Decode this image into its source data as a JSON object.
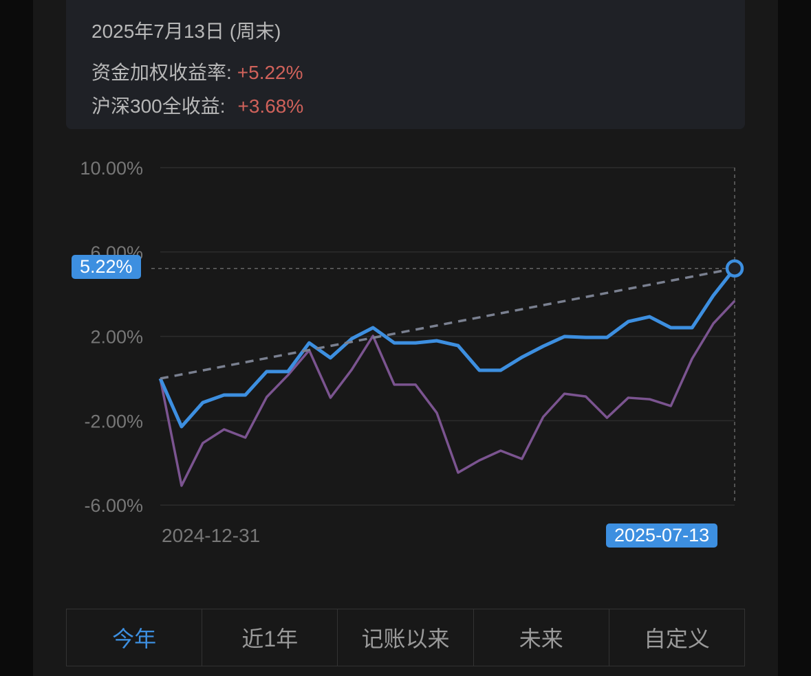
{
  "summary": {
    "date": "2025年7月13日 (周末)",
    "rows": [
      {
        "label": "资金加权收益率:",
        "value": "+5.22%"
      },
      {
        "label": "沪深300全收益:",
        "value": "+3.68%"
      }
    ]
  },
  "chart_data": {
    "type": "line",
    "y_ticks": [
      "10.00%",
      "6.00%",
      "2.00%",
      "-2.00%",
      "-6.00%"
    ],
    "y_tick_values": [
      10,
      6,
      2,
      -2,
      -6
    ],
    "ylim": [
      -6,
      10
    ],
    "x_start_label": "2024-12-31",
    "x_end_label": "2025-07-13",
    "selected_value_label": "5.22%",
    "grid": true,
    "colors": {
      "portfolio": "#3d8fe0",
      "benchmark": "#7b5490",
      "trend": "#7a8090"
    },
    "series": [
      {
        "key": "portfolio",
        "values": [
          0,
          -2.28,
          -1.14,
          -0.78,
          -0.78,
          0.33,
          0.33,
          1.69,
          0.98,
          1.89,
          2.41,
          1.69,
          1.69,
          1.79,
          1.56,
          0.39,
          0.39,
          1.01,
          1.53,
          1.99,
          1.95,
          1.95,
          2.7,
          2.93,
          2.41,
          2.41,
          3.94,
          5.22
        ]
      },
      {
        "key": "benchmark",
        "values": [
          0,
          -5.08,
          -3.06,
          -2.41,
          -2.8,
          -0.88,
          0.16,
          1.34,
          -0.91,
          0.42,
          2.02,
          -0.29,
          -0.29,
          -1.63,
          -4.46,
          -3.88,
          -3.42,
          -3.81,
          -1.82,
          -0.72,
          -0.85,
          -1.86,
          -0.91,
          -0.98,
          -1.3,
          0.94,
          2.61,
          3.68
        ]
      }
    ]
  },
  "tabs": [
    {
      "label": "今年",
      "active": true
    },
    {
      "label": "近1年"
    },
    {
      "label": "记账以来"
    },
    {
      "label": "未来"
    },
    {
      "label": "自定义"
    }
  ]
}
